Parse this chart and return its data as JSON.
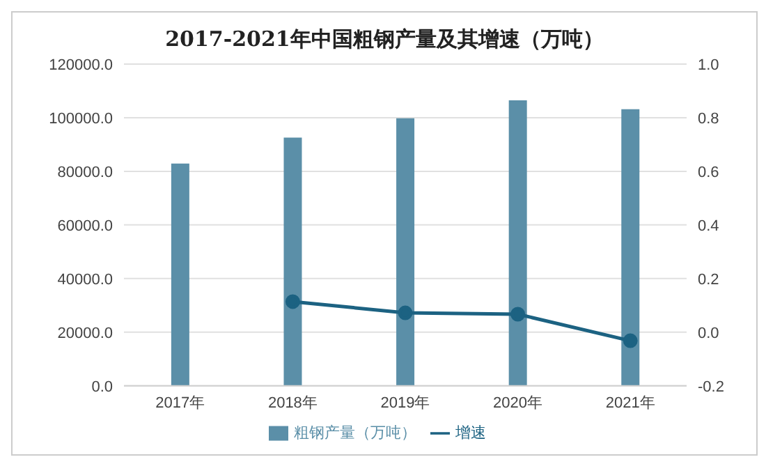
{
  "chart_data": {
    "type": "bar",
    "title": "2017-2021年中国粗钢产量及其增速（万吨）",
    "categories": [
      "2017年",
      "2018年",
      "2019年",
      "2020年",
      "2021年"
    ],
    "series": [
      {
        "name": "粗钢产量（万吨）",
        "color": "#5b8fa8",
        "values": [
          82900,
          92600,
          99800,
          106500,
          103200
        ]
      },
      {
        "name": "增速",
        "type": "line",
        "axis": "y2",
        "color": "#1c6282",
        "values": [
          null,
          0.114,
          0.072,
          0.067,
          -0.032
        ]
      }
    ],
    "ylim": [
      0,
      120000
    ],
    "yticks": [
      {
        "value": 0,
        "label": "0.0"
      },
      {
        "value": 20000,
        "label": "20000.0"
      },
      {
        "value": 40000,
        "label": "40000.0"
      },
      {
        "value": 60000,
        "label": "60000.0"
      },
      {
        "value": 80000,
        "label": "80000.0"
      },
      {
        "value": 100000,
        "label": "100000.0"
      },
      {
        "value": 120000,
        "label": "120000.0"
      }
    ],
    "y2lim": [
      -0.2,
      1.0
    ],
    "y2ticks": [
      {
        "value": -0.2,
        "label": "-0.2"
      },
      {
        "value": 0,
        "label": "0.0"
      },
      {
        "value": 0.2,
        "label": "0.2"
      },
      {
        "value": 0.4,
        "label": "0.4"
      },
      {
        "value": 0.6,
        "label": "0.6"
      },
      {
        "value": 0.8,
        "label": "0.8"
      },
      {
        "value": 1.0,
        "label": "1.0"
      }
    ],
    "grid": "y",
    "legend": "bottom",
    "marker": "circle",
    "line_style": "solid"
  }
}
